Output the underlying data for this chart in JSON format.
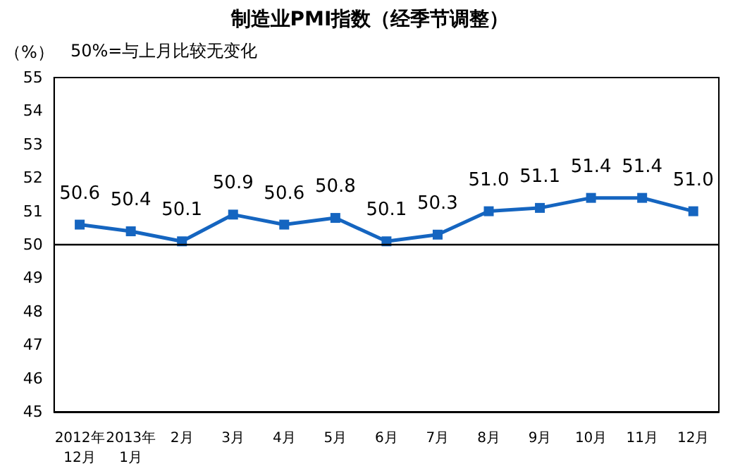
{
  "chart_data": {
    "type": "line",
    "title": "制造业PMI指数（经季节调整）",
    "ylabel": "（%）",
    "annotations": [
      "50%=与上月比较无变化"
    ],
    "categories": [
      "2012年\n12月",
      "2013年\n1月",
      "2月",
      "3月",
      "4月",
      "5月",
      "6月",
      "7月",
      "8月",
      "9月",
      "10月",
      "11月",
      "12月"
    ],
    "series": [
      {
        "color": "#1565c0",
        "values": [
          50.6,
          50.4,
          50.1,
          50.9,
          50.6,
          50.8,
          50.1,
          50.3,
          51.0,
          51.1,
          51.4,
          51.4,
          51.0
        ],
        "value_labels": [
          "50.6",
          "50.4",
          "50.1",
          "50.9",
          "50.6",
          "50.8",
          "50.1",
          "50.3",
          "51.0",
          "51.1",
          "51.4",
          "51.4",
          "51.0"
        ]
      }
    ],
    "ylim": [
      45,
      55
    ],
    "yticks": [
      45,
      46,
      47,
      48,
      49,
      50,
      51,
      52,
      53,
      54,
      55
    ],
    "ref_lines": [
      {
        "axis": "y",
        "value": 50,
        "color": "#000000"
      }
    ],
    "grid": false,
    "marker": "square",
    "line_style": "solid"
  }
}
